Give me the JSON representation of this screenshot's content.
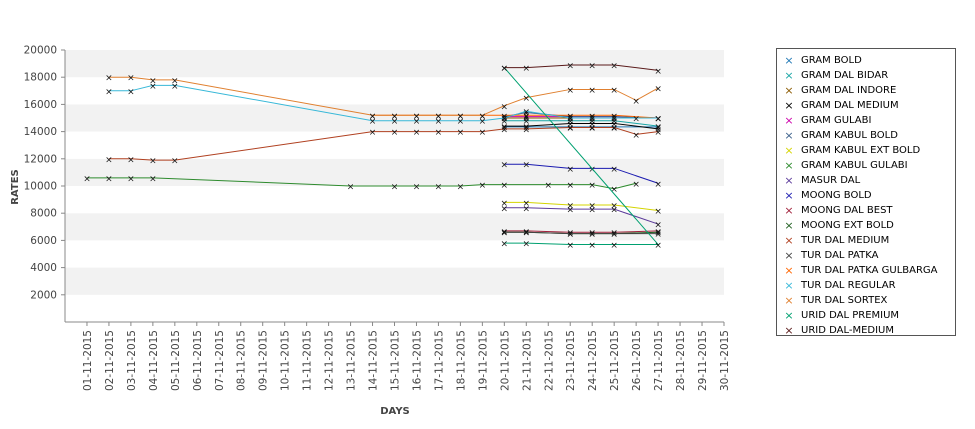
{
  "chart_data": {
    "type": "line",
    "xlabel": "DAYS",
    "ylabel": "RATES",
    "ylim": [
      0,
      20000
    ],
    "yticks": [
      2000,
      4000,
      6000,
      8000,
      10000,
      12000,
      14000,
      16000,
      18000,
      20000
    ],
    "x": [
      "01-11-2015",
      "02-11-2015",
      "03-11-2015",
      "04-11-2015",
      "05-11-2015",
      "06-11-2015",
      "07-11-2015",
      "08-11-2015",
      "09-11-2015",
      "10-11-2015",
      "11-11-2015",
      "12-11-2015",
      "13-11-2015",
      "14-11-2015",
      "15-11-2015",
      "16-11-2015",
      "17-11-2015",
      "18-11-2015",
      "19-11-2015",
      "20-11-2015",
      "21-11-2015",
      "22-11-2015",
      "23-11-2015",
      "24-11-2015",
      "25-11-2015",
      "26-11-2015",
      "27-11-2015",
      "28-11-2015",
      "29-11-2015",
      "30-11-2015"
    ],
    "grid": "alternating horizontal bands",
    "legend_position": "right",
    "series": [
      {
        "name": "GRAM BOLD",
        "color": "#1f77b4",
        "points": [
          [
            "20-11-2015",
            14350
          ],
          [
            "21-11-2015",
            14350
          ],
          [
            "23-11-2015",
            14350
          ],
          [
            "24-11-2015",
            14350
          ],
          [
            "25-11-2015",
            14350
          ],
          [
            "27-11-2015",
            14350
          ]
        ]
      },
      {
        "name": "GRAM DAL BIDAR",
        "color": "#19a5a5",
        "points": [
          [
            "20-11-2015",
            14800
          ],
          [
            "21-11-2015",
            14800
          ],
          [
            "23-11-2015",
            14800
          ],
          [
            "24-11-2015",
            14800
          ],
          [
            "25-11-2015",
            14800
          ],
          [
            "27-11-2015",
            14400
          ]
        ]
      },
      {
        "name": "GRAM DAL INDORE",
        "color": "#8b5a00",
        "points": [
          [
            "20-11-2015",
            15000
          ],
          [
            "21-11-2015",
            15000
          ],
          [
            "23-11-2015",
            15000
          ],
          [
            "24-11-2015",
            15000
          ],
          [
            "25-11-2015",
            15000
          ],
          [
            "27-11-2015",
            15000
          ]
        ]
      },
      {
        "name": "GRAM DAL MEDIUM",
        "color": "#000000",
        "points": [
          [
            "20-11-2015",
            14400
          ],
          [
            "21-11-2015",
            14400
          ],
          [
            "23-11-2015",
            14600
          ],
          [
            "24-11-2015",
            14600
          ],
          [
            "25-11-2015",
            14600
          ],
          [
            "27-11-2015",
            14200
          ]
        ]
      },
      {
        "name": "GRAM GULABI",
        "color": "#cc00aa",
        "points": [
          [
            "20-11-2015",
            15100
          ],
          [
            "21-11-2015",
            15100
          ],
          [
            "23-11-2015",
            15100
          ],
          [
            "24-11-2015",
            15100
          ],
          [
            "25-11-2015",
            15100
          ],
          [
            "27-11-2015",
            15000
          ]
        ]
      },
      {
        "name": "GRAM KABUL BOLD",
        "color": "#3a5f8a",
        "points": [
          [
            "20-11-2015",
            15100
          ],
          [
            "21-11-2015",
            15400
          ],
          [
            "23-11-2015",
            15100
          ],
          [
            "24-11-2015",
            15100
          ],
          [
            "25-11-2015",
            15100
          ],
          [
            "27-11-2015",
            15000
          ]
        ]
      },
      {
        "name": "GRAM KABUL EXT BOLD",
        "color": "#d4d400",
        "points": [
          [
            "20-11-2015",
            8800
          ],
          [
            "21-11-2015",
            8800
          ],
          [
            "23-11-2015",
            8600
          ],
          [
            "24-11-2015",
            8600
          ],
          [
            "25-11-2015",
            8600
          ],
          [
            "27-11-2015",
            8200
          ]
        ]
      },
      {
        "name": "GRAM KABUL GULABI",
        "color": "#2e8b2e",
        "points": [
          [
            "01-11-2015",
            10600
          ],
          [
            "02-11-2015",
            10600
          ],
          [
            "03-11-2015",
            10600
          ],
          [
            "04-11-2015",
            10600
          ],
          [
            "13-11-2015",
            10000
          ],
          [
            "15-11-2015",
            10000
          ],
          [
            "16-11-2015",
            10000
          ],
          [
            "17-11-2015",
            10000
          ],
          [
            "18-11-2015",
            10000
          ],
          [
            "19-11-2015",
            10100
          ],
          [
            "20-11-2015",
            10100
          ],
          [
            "22-11-2015",
            10100
          ],
          [
            "23-11-2015",
            10100
          ],
          [
            "24-11-2015",
            10100
          ],
          [
            "25-11-2015",
            9800
          ],
          [
            "26-11-2015",
            10200
          ]
        ]
      },
      {
        "name": "MASUR DAL",
        "color": "#5b3a9a",
        "points": [
          [
            "20-11-2015",
            8400
          ],
          [
            "21-11-2015",
            8400
          ],
          [
            "23-11-2015",
            8300
          ],
          [
            "24-11-2015",
            8300
          ],
          [
            "25-11-2015",
            8300
          ],
          [
            "27-11-2015",
            7200
          ]
        ]
      },
      {
        "name": "MOONG BOLD",
        "color": "#1a1ab0",
        "points": [
          [
            "20-11-2015",
            11600
          ],
          [
            "21-11-2015",
            11600
          ],
          [
            "23-11-2015",
            11300
          ],
          [
            "24-11-2015",
            11300
          ],
          [
            "25-11-2015",
            11300
          ],
          [
            "27-11-2015",
            10200
          ]
        ]
      },
      {
        "name": "MOONG DAL BEST",
        "color": "#a0203a",
        "points": [
          [
            "20-11-2015",
            6700
          ],
          [
            "21-11-2015",
            6700
          ],
          [
            "23-11-2015",
            6600
          ],
          [
            "24-11-2015",
            6600
          ],
          [
            "25-11-2015",
            6600
          ],
          [
            "27-11-2015",
            6700
          ]
        ]
      },
      {
        "name": "MOONG EXT BOLD",
        "color": "#1f5f1f",
        "points": [
          [
            "20-11-2015",
            6600
          ],
          [
            "21-11-2015",
            6600
          ],
          [
            "23-11-2015",
            6500
          ],
          [
            "24-11-2015",
            6500
          ],
          [
            "25-11-2015",
            6500
          ],
          [
            "27-11-2015",
            6600
          ]
        ]
      },
      {
        "name": "TUR DAL MEDIUM",
        "color": "#b04020",
        "points": [
          [
            "02-11-2015",
            12000
          ],
          [
            "03-11-2015",
            12000
          ],
          [
            "04-11-2015",
            11900
          ],
          [
            "05-11-2015",
            11900
          ],
          [
            "14-11-2015",
            14000
          ],
          [
            "15-11-2015",
            14000
          ],
          [
            "16-11-2015",
            14000
          ],
          [
            "17-11-2015",
            14000
          ],
          [
            "18-11-2015",
            14000
          ],
          [
            "19-11-2015",
            14000
          ],
          [
            "20-11-2015",
            14200
          ],
          [
            "21-11-2015",
            14200
          ],
          [
            "23-11-2015",
            14300
          ],
          [
            "24-11-2015",
            14300
          ],
          [
            "25-11-2015",
            14300
          ],
          [
            "26-11-2015",
            13800
          ],
          [
            "27-11-2015",
            14000
          ]
        ]
      },
      {
        "name": "TUR DAL PATKA",
        "color": "#444444",
        "points": [
          [
            "20-11-2015",
            6600
          ],
          [
            "21-11-2015",
            6600
          ],
          [
            "23-11-2015",
            6500
          ],
          [
            "24-11-2015",
            6500
          ],
          [
            "25-11-2015",
            6500
          ],
          [
            "27-11-2015",
            6500
          ]
        ]
      },
      {
        "name": "TUR DAL PATKA GULBARGA",
        "color": "#ff6600",
        "points": [
          [
            "14-11-2015",
            15200
          ],
          [
            "15-11-2015",
            15200
          ],
          [
            "16-11-2015",
            15200
          ],
          [
            "17-11-2015",
            15200
          ],
          [
            "18-11-2015",
            15200
          ],
          [
            "19-11-2015",
            15200
          ],
          [
            "20-11-2015",
            15200
          ],
          [
            "21-11-2015",
            15200
          ],
          [
            "23-11-2015",
            15200
          ],
          [
            "24-11-2015",
            15200
          ],
          [
            "25-11-2015",
            15200
          ],
          [
            "27-11-2015",
            15000
          ]
        ]
      },
      {
        "name": "TUR DAL REGULAR",
        "color": "#38b8d8",
        "points": [
          [
            "02-11-2015",
            17000
          ],
          [
            "03-11-2015",
            17000
          ],
          [
            "04-11-2015",
            17400
          ],
          [
            "05-11-2015",
            17400
          ],
          [
            "14-11-2015",
            14800
          ],
          [
            "15-11-2015",
            14800
          ],
          [
            "16-11-2015",
            14800
          ],
          [
            "17-11-2015",
            14800
          ],
          [
            "18-11-2015",
            14800
          ],
          [
            "19-11-2015",
            14800
          ],
          [
            "20-11-2015",
            15000
          ],
          [
            "21-11-2015",
            15500
          ],
          [
            "23-11-2015",
            15000
          ],
          [
            "24-11-2015",
            15000
          ],
          [
            "25-11-2015",
            15000
          ],
          [
            "26-11-2015",
            15000
          ],
          [
            "27-11-2015",
            15000
          ]
        ]
      },
      {
        "name": "TUR DAL SORTEX",
        "color": "#e08030",
        "points": [
          [
            "02-11-2015",
            18000
          ],
          [
            "03-11-2015",
            18000
          ],
          [
            "04-11-2015",
            17800
          ],
          [
            "05-11-2015",
            17800
          ],
          [
            "14-11-2015",
            15200
          ],
          [
            "15-11-2015",
            15200
          ],
          [
            "16-11-2015",
            15200
          ],
          [
            "17-11-2015",
            15200
          ],
          [
            "18-11-2015",
            15200
          ],
          [
            "19-11-2015",
            15200
          ],
          [
            "20-11-2015",
            15900
          ],
          [
            "21-11-2015",
            16500
          ],
          [
            "23-11-2015",
            17100
          ],
          [
            "24-11-2015",
            17100
          ],
          [
            "25-11-2015",
            17100
          ],
          [
            "26-11-2015",
            16300
          ],
          [
            "27-11-2015",
            17200
          ]
        ]
      },
      {
        "name": "URID DAL PREMIUM",
        "color": "#00a070",
        "points": [
          [
            "20-11-2015",
            5800
          ],
          [
            "21-11-2015",
            5800
          ],
          [
            "23-11-2015",
            5700
          ],
          [
            "24-11-2015",
            5700
          ],
          [
            "25-11-2015",
            5700
          ],
          [
            "27-11-2015",
            5700
          ],
          [
            "20-11-2015",
            18700
          ]
        ]
      },
      {
        "name": "URID DAL-MEDIUM",
        "color": "#5a1a1a",
        "points": [
          [
            "20-11-2015",
            18700
          ],
          [
            "21-11-2015",
            18700
          ],
          [
            "23-11-2015",
            18900
          ],
          [
            "24-11-2015",
            18900
          ],
          [
            "25-11-2015",
            18900
          ],
          [
            "27-11-2015",
            18500
          ]
        ]
      }
    ]
  }
}
